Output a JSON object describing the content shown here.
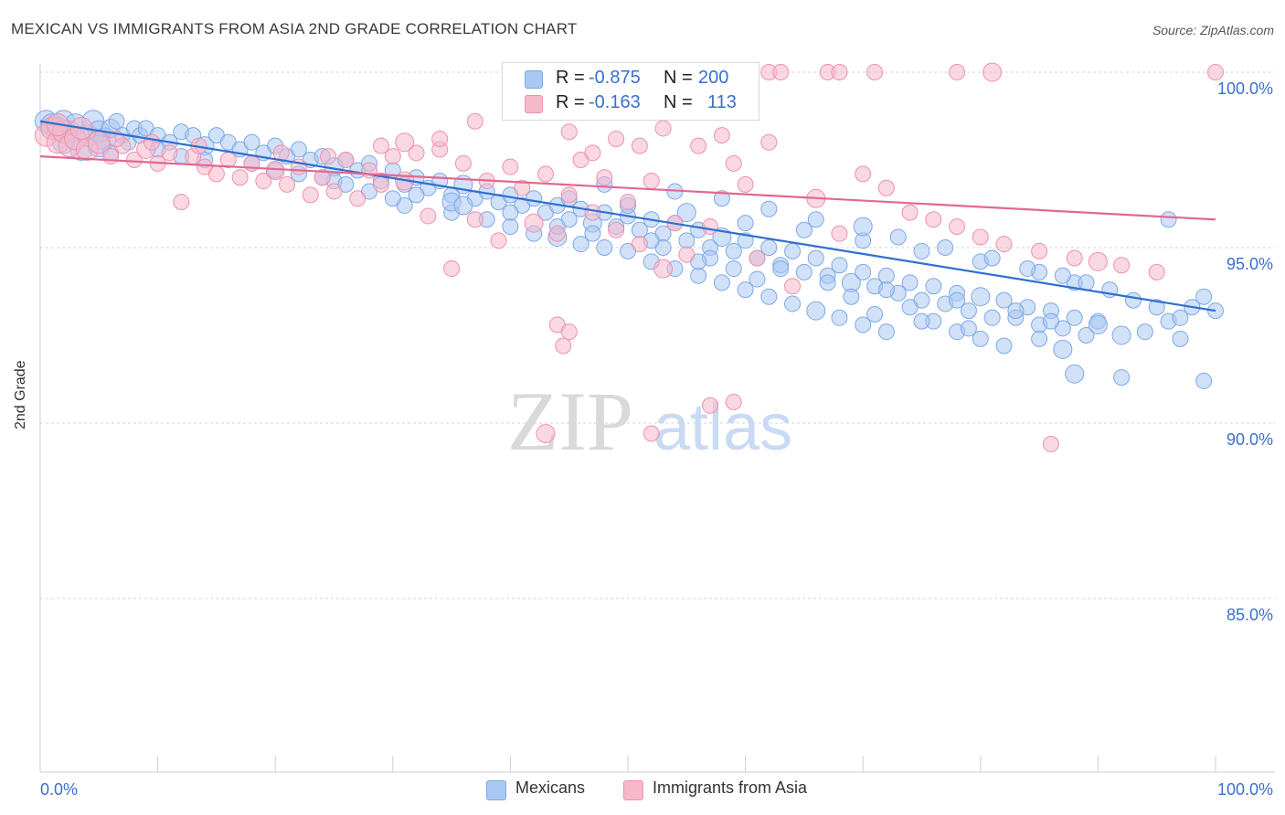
{
  "title": "MEXICAN VS IMMIGRANTS FROM ASIA 2ND GRADE CORRELATION CHART",
  "source": "Source: ZipAtlas.com",
  "watermark": {
    "zip": "ZIP",
    "atlas": "atlas"
  },
  "legend": {
    "rows": [
      {
        "r_label": "R =",
        "r_value": "-0.875",
        "n_label": "N =",
        "n_value": "200",
        "color": "#a9c8f3"
      },
      {
        "r_label": "R =",
        "r_value": "-0.163",
        "n_label": "N =",
        "n_value": "113",
        "color": "#f6b8cb"
      }
    ]
  },
  "bottom_legend": {
    "series1": "Mexicans",
    "series2": "Immigrants from Asia"
  },
  "chart_data": {
    "type": "scatter",
    "xlabel": "",
    "ylabel": "2nd Grade",
    "xlim": [
      0,
      100
    ],
    "ylim": [
      80.3,
      100.5
    ],
    "x_tick_labels": [
      "0.0%",
      "100.0%"
    ],
    "y_ticks": [
      100,
      95,
      90,
      85
    ],
    "y_tick_labels": [
      "100.0%",
      "95.0%",
      "90.0%",
      "85.0%"
    ],
    "grid": true,
    "legend_position": "top-center",
    "series": [
      {
        "name": "Mexicans",
        "color": "#a9c8f3",
        "stroke": "#7fa9e6",
        "trend_color": "#2f6fd0",
        "trend": {
          "x": [
            0,
            100
          ],
          "y": [
            98.6,
            93.2
          ]
        },
        "points": [
          [
            0.5,
            98.6
          ],
          [
            1.0,
            98.5
          ],
          [
            1.5,
            98.4
          ],
          [
            2.0,
            98.6
          ],
          [
            2.5,
            98.3
          ],
          [
            3.0,
            98.5
          ],
          [
            3.5,
            97.8
          ],
          [
            4.0,
            98.2
          ],
          [
            4.5,
            98.6
          ],
          [
            5.0,
            98.3
          ],
          [
            5.5,
            98.1
          ],
          [
            6.0,
            98.4
          ],
          [
            6.5,
            98.6
          ],
          [
            7.0,
            98.2
          ],
          [
            7.5,
            98.0
          ],
          [
            8.0,
            98.4
          ],
          [
            8.5,
            98.2
          ],
          [
            9.0,
            98.4
          ],
          [
            10,
            98.2
          ],
          [
            11,
            98.0
          ],
          [
            12,
            98.3
          ],
          [
            13,
            98.2
          ],
          [
            14,
            97.9
          ],
          [
            15,
            98.2
          ],
          [
            16,
            98.0
          ],
          [
            17,
            97.8
          ],
          [
            18,
            98.0
          ],
          [
            19,
            97.7
          ],
          [
            20,
            97.9
          ],
          [
            21,
            97.6
          ],
          [
            22,
            97.8
          ],
          [
            23,
            97.5
          ],
          [
            24,
            97.6
          ],
          [
            25,
            97.3
          ],
          [
            26,
            97.5
          ],
          [
            27,
            97.2
          ],
          [
            28,
            97.4
          ],
          [
            29,
            96.9
          ],
          [
            30,
            97.2
          ],
          [
            31,
            96.8
          ],
          [
            32,
            97.0
          ],
          [
            33,
            96.7
          ],
          [
            34,
            96.9
          ],
          [
            35,
            96.5
          ],
          [
            36,
            96.8
          ],
          [
            37,
            96.4
          ],
          [
            38,
            96.6
          ],
          [
            39,
            96.3
          ],
          [
            40,
            96.5
          ],
          [
            41,
            96.2
          ],
          [
            42,
            96.4
          ],
          [
            43,
            96.0
          ],
          [
            44,
            96.2
          ],
          [
            45,
            95.8
          ],
          [
            46,
            96.1
          ],
          [
            47,
            95.7
          ],
          [
            48,
            96.0
          ],
          [
            49,
            95.6
          ],
          [
            50,
            95.9
          ],
          [
            51,
            95.5
          ],
          [
            52,
            95.8
          ],
          [
            53,
            95.4
          ],
          [
            54,
            95.7
          ],
          [
            55,
            95.2
          ],
          [
            56,
            95.5
          ],
          [
            57,
            95.0
          ],
          [
            58,
            95.3
          ],
          [
            59,
            94.9
          ],
          [
            60,
            95.2
          ],
          [
            61,
            94.7
          ],
          [
            62,
            95.0
          ],
          [
            63,
            94.5
          ],
          [
            64,
            94.9
          ],
          [
            65,
            94.3
          ],
          [
            66,
            94.7
          ],
          [
            67,
            94.2
          ],
          [
            68,
            94.5
          ],
          [
            69,
            94.0
          ],
          [
            70,
            94.3
          ],
          [
            71,
            93.9
          ],
          [
            72,
            94.2
          ],
          [
            73,
            93.7
          ],
          [
            74,
            94.0
          ],
          [
            75,
            93.5
          ],
          [
            76,
            93.9
          ],
          [
            77,
            93.4
          ],
          [
            78,
            93.7
          ],
          [
            79,
            93.2
          ],
          [
            80,
            93.6
          ],
          [
            81,
            93.0
          ],
          [
            82,
            93.5
          ],
          [
            83,
            93.0
          ],
          [
            84,
            93.3
          ],
          [
            85,
            92.8
          ],
          [
            86,
            93.2
          ],
          [
            87,
            92.7
          ],
          [
            88,
            93.0
          ],
          [
            89,
            92.5
          ],
          [
            90,
            92.9
          ],
          [
            92,
            92.5
          ],
          [
            5,
            97.9
          ],
          [
            12,
            97.6
          ],
          [
            18,
            97.4
          ],
          [
            22,
            97.1
          ],
          [
            28,
            96.6
          ],
          [
            31,
            96.2
          ],
          [
            35,
            96.0
          ],
          [
            38,
            95.8
          ],
          [
            40,
            95.6
          ],
          [
            42,
            95.4
          ],
          [
            44,
            95.3
          ],
          [
            46,
            95.1
          ],
          [
            48,
            95.0
          ],
          [
            50,
            94.9
          ],
          [
            52,
            94.6
          ],
          [
            54,
            94.4
          ],
          [
            56,
            94.2
          ],
          [
            58,
            94.0
          ],
          [
            60,
            93.8
          ],
          [
            62,
            93.6
          ],
          [
            64,
            93.4
          ],
          [
            66,
            93.2
          ],
          [
            68,
            93.0
          ],
          [
            70,
            92.8
          ],
          [
            72,
            92.6
          ],
          [
            74,
            93.3
          ],
          [
            76,
            92.9
          ],
          [
            78,
            92.6
          ],
          [
            80,
            92.4
          ],
          [
            82,
            92.2
          ],
          [
            45,
            96.4
          ],
          [
            50,
            96.2
          ],
          [
            55,
            96.0
          ],
          [
            60,
            95.7
          ],
          [
            65,
            95.5
          ],
          [
            70,
            95.2
          ],
          [
            75,
            94.9
          ],
          [
            80,
            94.6
          ],
          [
            85,
            94.3
          ],
          [
            88,
            94.0
          ],
          [
            20,
            97.2
          ],
          [
            25,
            96.9
          ],
          [
            30,
            96.4
          ],
          [
            35,
            96.3
          ],
          [
            40,
            96.0
          ],
          [
            47,
            95.4
          ],
          [
            53,
            95.0
          ],
          [
            57,
            94.7
          ],
          [
            63,
            94.4
          ],
          [
            67,
            94.0
          ],
          [
            72,
            93.8
          ],
          [
            78,
            93.5
          ],
          [
            83,
            93.2
          ],
          [
            86,
            92.9
          ],
          [
            90,
            92.8
          ],
          [
            94,
            92.6
          ],
          [
            96,
            92.9
          ],
          [
            98,
            93.3
          ],
          [
            99,
            93.6
          ],
          [
            100,
            93.2
          ],
          [
            48,
            96.8
          ],
          [
            54,
            96.6
          ],
          [
            58,
            96.4
          ],
          [
            62,
            96.1
          ],
          [
            66,
            95.8
          ],
          [
            70,
            95.6
          ],
          [
            73,
            95.3
          ],
          [
            77,
            95.0
          ],
          [
            81,
            94.7
          ],
          [
            84,
            94.4
          ],
          [
            87,
            94.2
          ],
          [
            89,
            94.0
          ],
          [
            91,
            93.8
          ],
          [
            93,
            93.5
          ],
          [
            95,
            93.3
          ],
          [
            97,
            93.0
          ],
          [
            88,
            91.4
          ],
          [
            92,
            91.3
          ],
          [
            99,
            91.2
          ],
          [
            96,
            95.8
          ],
          [
            2,
            98.0
          ],
          [
            6,
            97.7
          ],
          [
            10,
            97.8
          ],
          [
            14,
            97.5
          ],
          [
            24,
            97.0
          ],
          [
            26,
            96.8
          ],
          [
            32,
            96.5
          ],
          [
            36,
            96.2
          ],
          [
            44,
            95.6
          ],
          [
            52,
            95.2
          ],
          [
            56,
            94.6
          ],
          [
            59,
            94.4
          ],
          [
            61,
            94.1
          ],
          [
            69,
            93.6
          ],
          [
            71,
            93.1
          ],
          [
            75,
            92.9
          ],
          [
            79,
            92.7
          ],
          [
            85,
            92.4
          ],
          [
            87,
            92.1
          ],
          [
            97,
            92.4
          ]
        ]
      },
      {
        "name": "Immigrants from Asia",
        "color": "#f6b8cb",
        "stroke": "#ee91ae",
        "trend_color": "#e26890",
        "trend": {
          "x": [
            0,
            100
          ],
          "y": [
            97.6,
            95.8
          ]
        },
        "points": [
          [
            0.5,
            98.2
          ],
          [
            1.0,
            98.4
          ],
          [
            1.5,
            98.0
          ],
          [
            2.0,
            98.3
          ],
          [
            2.5,
            97.9
          ],
          [
            3.0,
            98.1
          ],
          [
            4.0,
            97.8
          ],
          [
            5.0,
            98.0
          ],
          [
            6.0,
            97.6
          ],
          [
            7.0,
            97.9
          ],
          [
            8.0,
            97.5
          ],
          [
            9.0,
            97.8
          ],
          [
            10,
            97.4
          ],
          [
            11,
            97.7
          ],
          [
            12,
            96.3
          ],
          [
            13,
            97.6
          ],
          [
            14,
            97.3
          ],
          [
            15,
            97.1
          ],
          [
            16,
            97.5
          ],
          [
            17,
            97.0
          ],
          [
            18,
            97.4
          ],
          [
            19,
            96.9
          ],
          [
            20,
            97.2
          ],
          [
            21,
            96.8
          ],
          [
            22,
            97.3
          ],
          [
            23,
            96.5
          ],
          [
            24,
            97.0
          ],
          [
            25,
            96.6
          ],
          [
            26,
            97.5
          ],
          [
            27,
            96.4
          ],
          [
            28,
            97.2
          ],
          [
            29,
            96.8
          ],
          [
            30,
            97.6
          ],
          [
            31,
            96.9
          ],
          [
            32,
            97.7
          ],
          [
            33,
            95.9
          ],
          [
            34,
            97.8
          ],
          [
            35,
            94.4
          ],
          [
            36,
            97.4
          ],
          [
            37,
            95.8
          ],
          [
            38,
            96.9
          ],
          [
            39,
            95.2
          ],
          [
            40,
            97.3
          ],
          [
            41,
            96.7
          ],
          [
            42,
            95.7
          ],
          [
            43,
            97.1
          ],
          [
            44,
            95.4
          ],
          [
            45,
            96.5
          ],
          [
            46,
            97.5
          ],
          [
            47,
            96.0
          ],
          [
            48,
            97.0
          ],
          [
            49,
            95.5
          ],
          [
            50,
            96.3
          ],
          [
            51,
            95.1
          ],
          [
            52,
            96.9
          ],
          [
            53,
            94.4
          ],
          [
            54,
            95.7
          ],
          [
            55,
            94.8
          ],
          [
            56,
            97.9
          ],
          [
            57,
            95.6
          ],
          [
            58,
            98.2
          ],
          [
            59,
            97.4
          ],
          [
            60,
            96.8
          ],
          [
            61,
            94.7
          ],
          [
            62,
            98.0
          ],
          [
            64,
            93.9
          ],
          [
            66,
            96.4
          ],
          [
            68,
            95.4
          ],
          [
            70,
            97.1
          ],
          [
            72,
            96.7
          ],
          [
            74,
            96.0
          ],
          [
            76,
            95.8
          ],
          [
            78,
            95.6
          ],
          [
            80,
            95.3
          ],
          [
            82,
            95.1
          ],
          [
            85,
            94.9
          ],
          [
            88,
            94.7
          ],
          [
            90,
            94.6
          ],
          [
            92,
            94.5
          ],
          [
            95,
            94.3
          ],
          [
            1.5,
            98.5
          ],
          [
            3.5,
            98.4
          ],
          [
            6.5,
            98.1
          ],
          [
            9.5,
            98.0
          ],
          [
            13.5,
            97.9
          ],
          [
            20.5,
            97.7
          ],
          [
            24.5,
            97.6
          ],
          [
            29,
            97.9
          ],
          [
            31,
            98.0
          ],
          [
            34,
            98.1
          ],
          [
            37,
            98.6
          ],
          [
            45,
            98.3
          ],
          [
            47,
            97.7
          ],
          [
            49,
            98.1
          ],
          [
            51,
            97.9
          ],
          [
            53,
            98.4
          ],
          [
            44,
            92.8
          ],
          [
            44.5,
            92.2
          ],
          [
            45,
            92.6
          ],
          [
            43,
            89.7
          ],
          [
            52,
            89.7
          ],
          [
            57,
            90.5
          ],
          [
            59,
            90.6
          ],
          [
            62,
            100
          ],
          [
            63,
            100
          ],
          [
            67,
            100
          ],
          [
            68,
            100
          ],
          [
            71,
            100
          ],
          [
            78,
            100
          ],
          [
            100,
            100
          ],
          [
            81,
            100
          ],
          [
            86,
            89.4
          ],
          [
            54,
            99.7
          ]
        ]
      }
    ]
  }
}
